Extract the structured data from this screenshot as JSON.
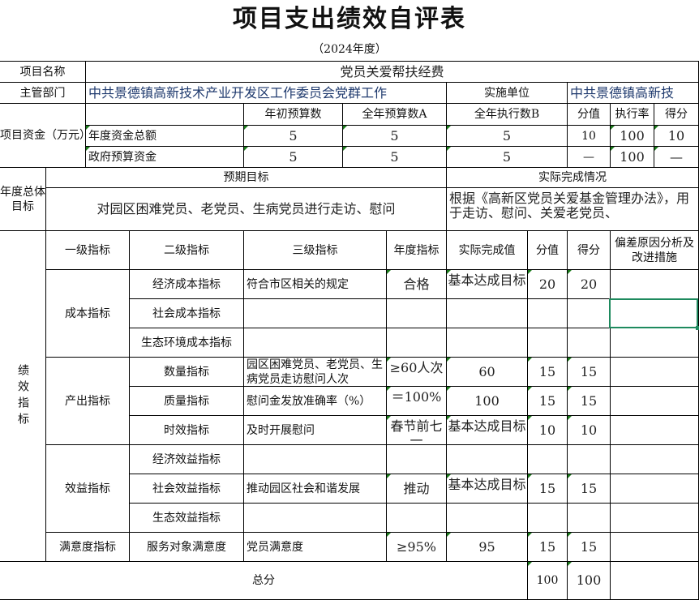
{
  "title": "项目支出绩效自评表",
  "year": "（2024年度）",
  "project": {
    "name_label": "项目名称",
    "name": "党员关爱帮扶经费"
  },
  "dept": {
    "label": "主管部门",
    "value": "中共景德镇高新技术产业开发区工作委员会党群工作",
    "impl_label": "实施单位",
    "impl_value": "中共景德镇高新技"
  },
  "funds": {
    "label": "项目资金（万元）",
    "headers": [
      "年初预算数",
      "全年预算数A",
      "全年执行数B",
      "分值",
      "执行率",
      "得分"
    ],
    "rows": [
      {
        "label": "年度资金总额",
        "values": [
          "5",
          "5",
          "5",
          "10",
          "100",
          "10"
        ]
      },
      {
        "label": "政府预算资金",
        "values": [
          "5",
          "5",
          "5",
          "—",
          "100",
          "—"
        ]
      }
    ]
  },
  "goals": {
    "label": "年度总体目标",
    "expected_label": "预期目标",
    "actual_label": "实际完成情况",
    "expected": "对园区困难党员、老党员、生病党员进行走访、慰问",
    "actual": "根据《高新区党员关爱基金管理办法》，用于走访、慰问、关爱老党员、"
  },
  "perf": {
    "label": "绩效指标",
    "headers": [
      "一级指标",
      "二级指标",
      "三级指标",
      "年度指标",
      "实际完成值",
      "分值",
      "得分",
      "偏差原因分析及改进措施"
    ],
    "level1": [
      "成本指标",
      "产出指标",
      "效益指标",
      "满意度指标"
    ],
    "rows": [
      {
        "l2": "经济成本指标",
        "l3": "符合市区相关的规定",
        "target": "合格",
        "actual": "基本达成目标",
        "score": "20",
        "got": "20",
        "note": ""
      },
      {
        "l2": "社会成本指标",
        "l3": "",
        "target": "",
        "actual": "",
        "score": "",
        "got": "",
        "note": ""
      },
      {
        "l2": "生态环境成本指标",
        "l3": "",
        "target": "",
        "actual": "",
        "score": "",
        "got": "",
        "note": ""
      },
      {
        "l2": "数量指标",
        "l3": "园区困难党员、老党员、生病党员走访慰问人次",
        "target": "≥60人次",
        "actual": "60",
        "score": "15",
        "got": "15",
        "note": ""
      },
      {
        "l2": "质量指标",
        "l3": "慰问金发放准确率（%）",
        "target": "＝100%",
        "actual": "100",
        "score": "15",
        "got": "15",
        "note": ""
      },
      {
        "l2": "时效指标",
        "l3": "及时开展慰问",
        "target": "春节前七一",
        "actual": "基本达成目标",
        "score": "10",
        "got": "10",
        "note": ""
      },
      {
        "l2": "经济效益指标",
        "l3": "",
        "target": "",
        "actual": "",
        "score": "",
        "got": "",
        "note": ""
      },
      {
        "l2": "社会效益指标",
        "l3": "推动园区社会和谐发展",
        "target": "推动",
        "actual": "基本达成目标",
        "score": "15",
        "got": "15",
        "note": ""
      },
      {
        "l2": "生态效益指标",
        "l3": "",
        "target": "",
        "actual": "",
        "score": "",
        "got": "",
        "note": ""
      },
      {
        "l2": "服务对象满意度",
        "l3": "党员满意度",
        "target": "≥95%",
        "actual": "95",
        "score": "15",
        "got": "15",
        "note": ""
      }
    ]
  },
  "total": {
    "label": "总分",
    "score": "100",
    "got": "100"
  },
  "colors": {
    "selection": "#1e8a5e",
    "dept_text": "#1f3a6e"
  }
}
